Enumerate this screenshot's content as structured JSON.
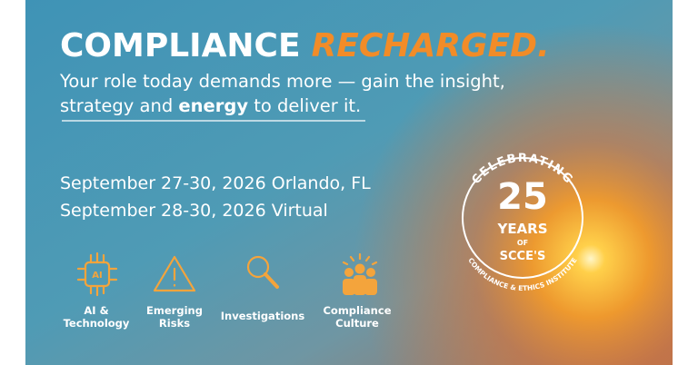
{
  "headline": {
    "main": "COMPLIANCE",
    "accent": "RECHARGED."
  },
  "subhead": {
    "line1": "Your role today demands more — gain the insight,",
    "line2_start": "strategy and ",
    "line2_bold": "energy",
    "line2_end": " to deliver it."
  },
  "dates": [
    "September 27-30, 2026 Orlando, FL",
    "September 28-30, 2026 Virtual"
  ],
  "badge": {
    "arc_top": "CELEBRATING",
    "number": "25",
    "years": "YEARS",
    "of": "OF",
    "org": "SCCE'S",
    "arc_bottom": "COMPLIANCE & ETHICS INSTITUTE"
  },
  "topics": [
    {
      "lines": [
        "AI &",
        "Technology"
      ]
    },
    {
      "lines": [
        "Emerging",
        "Risks"
      ]
    },
    {
      "lines": [
        "Investigations"
      ]
    },
    {
      "lines": [
        "Compliance",
        "Culture"
      ]
    }
  ]
}
